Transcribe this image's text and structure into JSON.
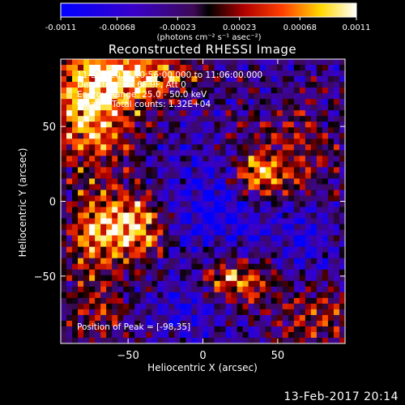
{
  "timestamp": "13-Feb-2017 20:14",
  "colorbar": {
    "tick_labels": [
      "-0.0011",
      "-0.00068",
      "-0.00023",
      "0.00023",
      "0.00068",
      "0.0011"
    ],
    "ticks": [
      -0.0011,
      -0.00068,
      -0.00023,
      0.00023,
      0.00068,
      0.0011
    ],
    "unit_label": "(photons cm⁻² s⁻¹ asec⁻²)"
  },
  "chart_data": {
    "type": "heatmap",
    "title": "Reconstructed RHESSI Image",
    "xlabel": "Heliocentric X (arcsec)",
    "ylabel": "Heliocentric Y (arcsec)",
    "xlim": [
      -95,
      95
    ],
    "ylim": [
      -95,
      95
    ],
    "xticks": [
      -50,
      0,
      50
    ],
    "yticks": [
      -50,
      0,
      50
    ],
    "xtick_labels": [
      "−50",
      "0",
      "50"
    ],
    "ytick_labels": [
      "−50",
      "0",
      "50"
    ],
    "zlim": [
      -0.0011,
      0.0011
    ],
    "peak": [
      -98,
      35
    ],
    "annotations": {
      "time_range": "11-Sep-2014 10:56:00.000 to 11:06:00.000",
      "detectors": "Detectors: 3F 6F 9F, Att 0",
      "energy": "Energy Range: 25.0 - 50.0 keV",
      "method": "Clean    Total counts: 1.32E+04",
      "peak_label": "Position of Peak = [-98,35]"
    }
  }
}
